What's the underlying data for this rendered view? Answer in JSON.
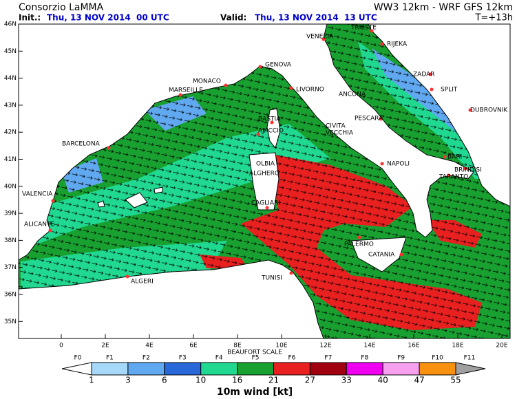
{
  "header": {
    "title": "Consorzio LaMMA",
    "model": "WW3 12km - WRF GFS 12km",
    "init_label": "Init.:",
    "init_time": "Thu, 13 NOV 2014  00 UTC",
    "valid_label": "Valid:",
    "valid_time": "Thu, 13 NOV 2014  13 UTC",
    "lead": "T=+13h"
  },
  "map": {
    "lat_labels": [
      "46N",
      "45N",
      "44N",
      "43N",
      "42N",
      "41N",
      "40N",
      "39N",
      "38N",
      "37N",
      "36N",
      "35N"
    ],
    "lon_labels": [
      "0",
      "2E",
      "4E",
      "6E",
      "8E",
      "10E",
      "12E",
      "14E",
      "16E",
      "18E",
      "20E"
    ],
    "cities": [
      "TRIESTE",
      "VENEZIA",
      "RIJEKA",
      "ZADAR",
      "SPLIT",
      "DUBROVNIK",
      "GENOVA",
      "MONACO",
      "MARSEILLE",
      "LIVORNO",
      "ANCONA",
      "PESCARA",
      "BASTIA",
      "AJACCIO",
      "CIVITA",
      "VECCHIA",
      "BARCELONA",
      "NAPOLI",
      "BARI",
      "BRINDISI",
      "TARANTO",
      "OLBIA",
      "ALGHERO",
      "VALENCIA",
      "CAGLIARI",
      "ALICANTE",
      "PALERMO",
      "CATANIA",
      "TUNISI",
      "ALGERI"
    ]
  },
  "legend": {
    "title": "BEAUFORT SCALE",
    "caption": "10m wind [kt]",
    "classes": [
      {
        "label": "F0",
        "color": "#ffffff"
      },
      {
        "label": "F1",
        "color": "#a8d8f8"
      },
      {
        "label": "F2",
        "color": "#60a8f0"
      },
      {
        "label": "F3",
        "color": "#2868d8"
      },
      {
        "label": "F4",
        "color": "#20d890"
      },
      {
        "label": "F5",
        "color": "#18a030"
      },
      {
        "label": "F6",
        "color": "#e82020"
      },
      {
        "label": "F7",
        "color": "#a00010"
      },
      {
        "label": "F8",
        "color": "#f000f0"
      },
      {
        "label": "F9",
        "color": "#f8a0f0"
      },
      {
        "label": "F10",
        "color": "#f89010"
      },
      {
        "label": "F11",
        "color": "#a0a0a0"
      }
    ],
    "thresholds": [
      1,
      3,
      6,
      10,
      16,
      21,
      27,
      33,
      40,
      47,
      55
    ]
  }
}
